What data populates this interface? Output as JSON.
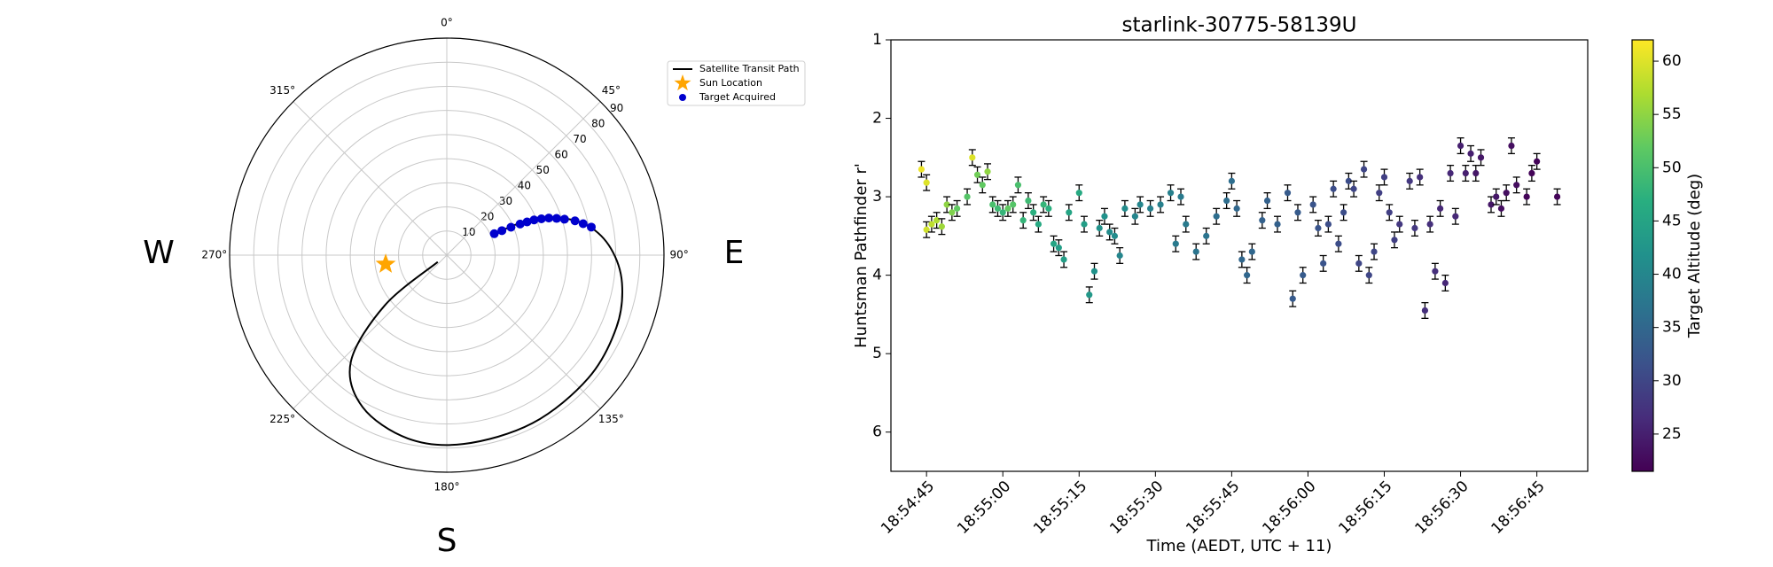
{
  "chart_data": [
    {
      "type": "polar",
      "theta_zero": "N",
      "theta_direction": "clockwise",
      "rlim": [
        0,
        90
      ],
      "rticks": [
        10,
        20,
        30,
        40,
        50,
        60,
        70,
        80,
        90
      ],
      "thetaticks": [
        {
          "value": 0,
          "label": "0°"
        },
        {
          "value": 45,
          "label": "45°"
        },
        {
          "value": 90,
          "label": "90°"
        },
        {
          "value": 135,
          "label": "135°"
        },
        {
          "value": 180,
          "label": "180°"
        },
        {
          "value": 225,
          "label": "225°"
        },
        {
          "value": 270,
          "label": "270°"
        },
        {
          "value": 315,
          "label": "315°"
        }
      ],
      "grid": true,
      "legend": "upper right",
      "series": [
        {
          "name": "Satellite Transit Path",
          "type": "line",
          "color": "#000000",
          "theta": [
            233,
            231,
            222,
            209,
            192,
            175,
            153,
            131,
            113,
            99,
            87.6,
            78.3,
            71.7,
            66.9,
            65.7
          ],
          "r": [
            4.7,
            33,
            59.4,
            72,
            77.7,
            78.6,
            78.2,
            77.7,
            76.4,
            73.5,
            68,
            59.9,
            49.4,
            38.2,
            21.6
          ]
        },
        {
          "name": "Sun Location",
          "type": "star",
          "color": "#ffa500",
          "theta": [
            261.6
          ],
          "r": [
            25.6
          ]
        },
        {
          "name": "Target Acquired",
          "type": "scatter",
          "color": "#0000cd",
          "theta": [
            65.7,
            66,
            66.5,
            67,
            67.5,
            68,
            69,
            70,
            71.5,
            73,
            75,
            77,
            79
          ],
          "r": [
            21.6,
            25,
            29,
            33,
            36,
            39,
            42,
            45,
            48,
            51,
            55,
            58,
            61
          ]
        }
      ],
      "annotations": [
        {
          "text": "W",
          "color": "#ff0000"
        },
        {
          "text": "E",
          "color": "#ff0000"
        },
        {
          "text": "S",
          "color": "#ff0000"
        }
      ]
    },
    {
      "type": "errorbar-scatter",
      "title": "starlink-30775-58139U",
      "xlabel": "Time (AEDT, UTC + 11)",
      "ylabel": "Huntsman Pathfinder r'",
      "xlim": [
        "18:54:38",
        "18:56:55"
      ],
      "xticks": [
        "18:54:45",
        "18:55:00",
        "18:55:15",
        "18:55:30",
        "18:55:45",
        "18:56:00",
        "18:56:15",
        "18:56:30",
        "18:56:45"
      ],
      "ylim": [
        6.5,
        1
      ],
      "yticks": [
        1,
        2,
        3,
        4,
        5,
        6
      ],
      "yerr": 0.1,
      "colormap": "viridis",
      "clim": [
        21.5,
        62
      ],
      "cticks": [
        25,
        30,
        35,
        40,
        45,
        50,
        55,
        60
      ],
      "clabel": "Target Altitude (deg)",
      "x": [
        "18:54:44",
        "18:54:45",
        "18:54:45",
        "18:54:46",
        "18:54:47",
        "18:54:48",
        "18:54:49",
        "18:54:50",
        "18:54:51",
        "18:54:53",
        "18:54:54",
        "18:54:55",
        "18:54:56",
        "18:54:57",
        "18:54:58",
        "18:54:59",
        "18:55:00",
        "18:55:01",
        "18:55:02",
        "18:55:03",
        "18:55:04",
        "18:55:05",
        "18:55:06",
        "18:55:07",
        "18:55:08",
        "18:55:09",
        "18:55:10",
        "18:55:11",
        "18:55:12",
        "18:55:13",
        "18:55:15",
        "18:55:16",
        "18:55:17",
        "18:55:18",
        "18:55:19",
        "18:55:20",
        "18:55:21",
        "18:55:22",
        "18:55:23",
        "18:55:24",
        "18:55:26",
        "18:55:27",
        "18:55:29",
        "18:55:31",
        "18:55:33",
        "18:55:34",
        "18:55:35",
        "18:55:36",
        "18:55:38",
        "18:55:40",
        "18:55:42",
        "18:55:44",
        "18:55:45",
        "18:55:46",
        "18:55:47",
        "18:55:48",
        "18:55:49",
        "18:55:51",
        "18:55:52",
        "18:55:54",
        "18:55:56",
        "18:55:57",
        "18:55:58",
        "18:55:59",
        "18:56:01",
        "18:56:02",
        "18:56:03",
        "18:56:04",
        "18:56:05",
        "18:56:06",
        "18:56:07",
        "18:56:08",
        "18:56:09",
        "18:56:10",
        "18:56:11",
        "18:56:12",
        "18:56:13",
        "18:56:14",
        "18:56:15",
        "18:56:16",
        "18:56:17",
        "18:56:18",
        "18:56:20",
        "18:56:21",
        "18:56:22",
        "18:56:23",
        "18:56:24",
        "18:56:25",
        "18:56:26",
        "18:56:27",
        "18:56:28",
        "18:56:29",
        "18:56:30",
        "18:56:31",
        "18:56:32",
        "18:56:33",
        "18:56:34",
        "18:56:36",
        "18:56:37",
        "18:56:38",
        "18:56:39",
        "18:56:40",
        "18:56:41",
        "18:56:43",
        "18:56:44",
        "18:56:45",
        "18:56:49"
      ],
      "values": [
        2.65,
        2.82,
        3.42,
        3.35,
        3.3,
        3.38,
        3.1,
        3.2,
        3.15,
        3.0,
        2.5,
        2.72,
        2.85,
        2.68,
        3.1,
        3.15,
        3.2,
        3.15,
        3.1,
        2.85,
        3.3,
        3.05,
        3.2,
        3.35,
        3.1,
        3.15,
        3.6,
        3.65,
        3.8,
        3.2,
        2.95,
        3.35,
        4.25,
        3.95,
        3.4,
        3.25,
        3.45,
        3.5,
        3.75,
        3.15,
        3.25,
        3.1,
        3.15,
        3.1,
        2.95,
        3.6,
        3.0,
        3.35,
        3.7,
        3.5,
        3.25,
        3.05,
        2.8,
        3.15,
        3.8,
        4.0,
        3.7,
        3.3,
        3.05,
        3.35,
        2.95,
        4.3,
        3.2,
        4.0,
        3.1,
        3.4,
        3.85,
        3.35,
        2.9,
        3.6,
        3.2,
        2.8,
        2.9,
        3.85,
        2.65,
        4.0,
        3.7,
        2.95,
        2.75,
        3.2,
        3.55,
        3.35,
        2.8,
        3.4,
        2.75,
        4.45,
        3.35,
        3.95,
        3.15,
        4.1,
        2.7,
        3.25,
        2.35,
        2.7,
        2.45,
        2.7,
        2.5,
        3.1,
        3.0,
        3.15,
        2.95,
        2.35,
        2.85,
        3.0,
        2.7,
        2.55,
        3.0
      ],
      "c": [
        61,
        60,
        59,
        58,
        57,
        56,
        55,
        54,
        52,
        51,
        60,
        53,
        52,
        55,
        50,
        49,
        48,
        52,
        51,
        50,
        48,
        49,
        47,
        46,
        48,
        47,
        45,
        44,
        44,
        45,
        46,
        44,
        43,
        42,
        42,
        42,
        41,
        41,
        40,
        41,
        40,
        40,
        39,
        39,
        39,
        38,
        38,
        38,
        37,
        37,
        36,
        36,
        36,
        35,
        35,
        35,
        35,
        34,
        34,
        34,
        33,
        33,
        33,
        33,
        32,
        32,
        32,
        31,
        31,
        31,
        31,
        31,
        30,
        30,
        30,
        30,
        30,
        29,
        29,
        29,
        29,
        28,
        28,
        28,
        27,
        27,
        27,
        27,
        26,
        26,
        26,
        26,
        25,
        25,
        25,
        24,
        24,
        24,
        24,
        23,
        23,
        23,
        23,
        22,
        22,
        22,
        22
      ]
    }
  ]
}
